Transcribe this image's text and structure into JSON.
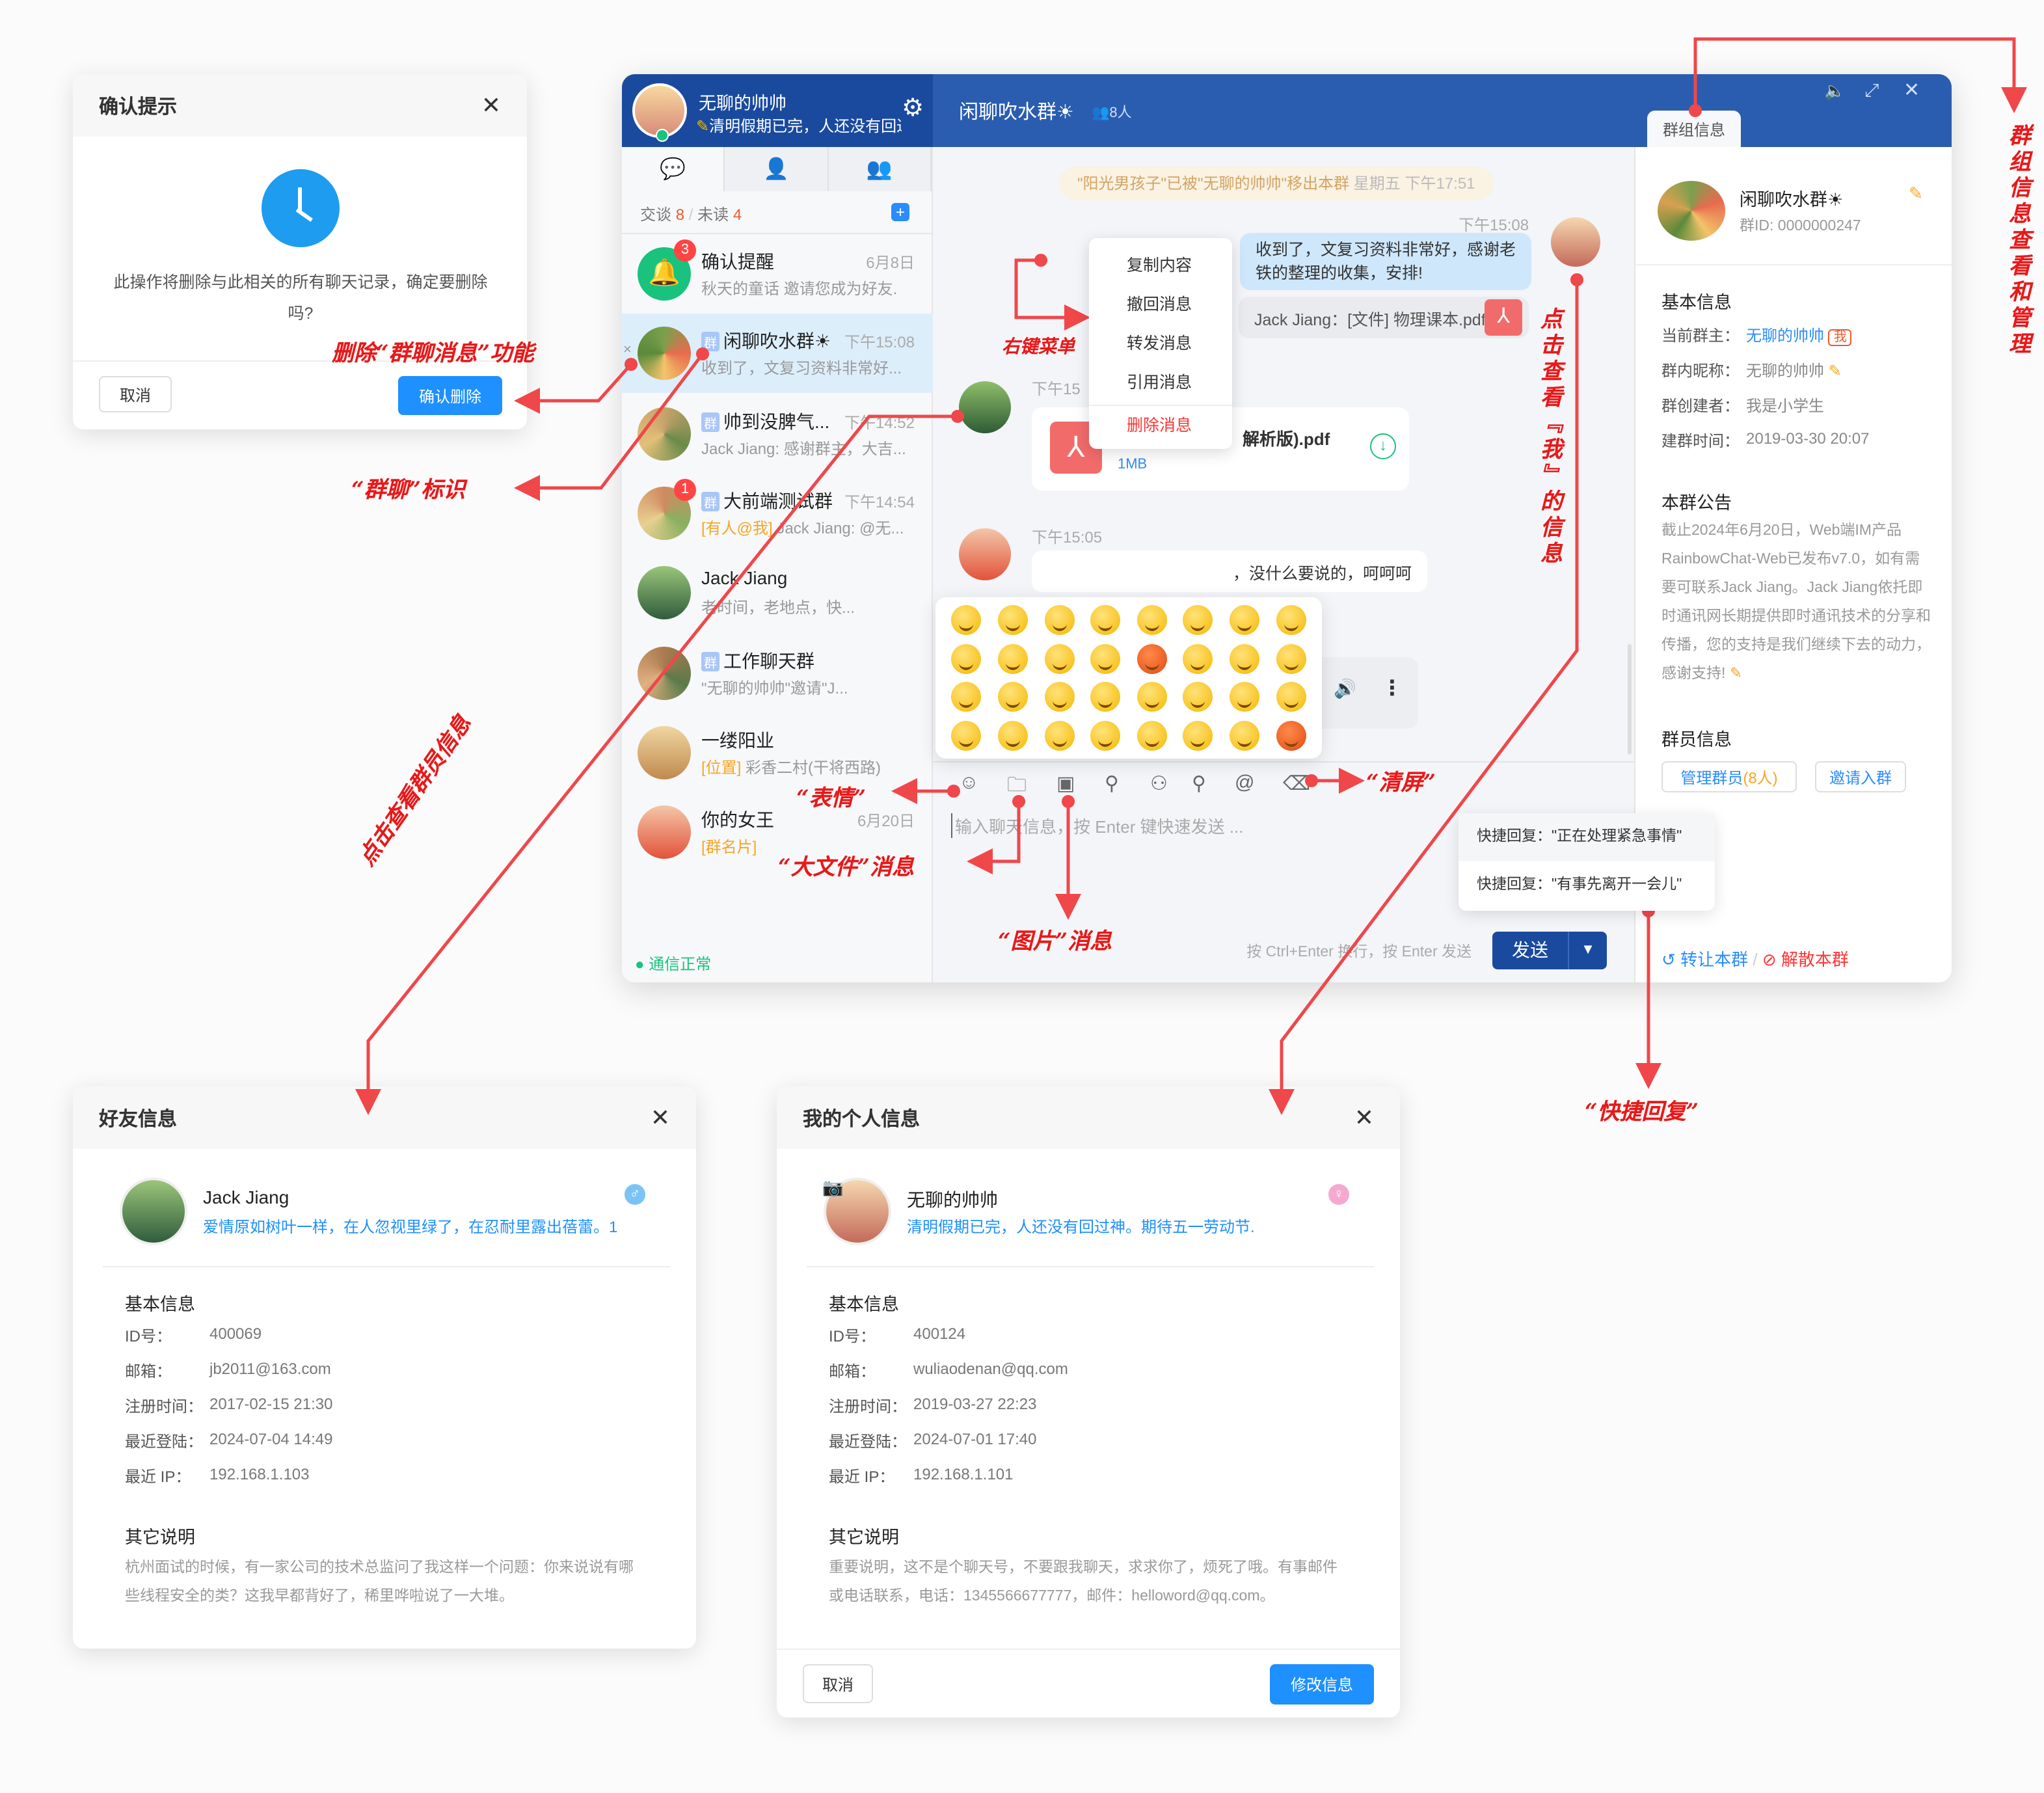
{
  "confirm_dialog": {
    "title": "确认提示",
    "icon": "clock-icon",
    "message": "此操作将删除与此相关的所有聊天记录，确定要删除吗?",
    "cancel": "取消",
    "confirm": "确认删除"
  },
  "window": {
    "me": {
      "name": "无聊的帅帅",
      "signature": "清明假期已完，人还没有回过神",
      "online": true
    },
    "tabs": [
      {
        "icon": "chat-bubble-icon",
        "active": true
      },
      {
        "icon": "contacts-icon"
      },
      {
        "icon": "group-icon"
      }
    ],
    "summary": {
      "talk_label": "交谈",
      "talk_count": "8",
      "sep": "/",
      "unread_label": "未读",
      "unread_count": "4"
    },
    "conversations": [
      {
        "name": "确认提醒",
        "time": "6月8日",
        "preview": "秋天的童话 邀请您成为好友.",
        "badge": "3",
        "group": false,
        "avatar": "bell"
      },
      {
        "name": "闲聊吹水群☀",
        "time": "下午15:08",
        "preview": "收到了，文复习资料非常好...",
        "group": true,
        "selected": true
      },
      {
        "name": "帅到没脾气...",
        "time": "下午14:52",
        "preview": "Jack Jiang: 感谢群主，大吉...",
        "group": true
      },
      {
        "name": "大前端测试群",
        "time": "下午14:54",
        "preview_tag": "[有人@我]",
        "preview": " Jack Jiang: @无...",
        "badge": "1",
        "group": true
      },
      {
        "name": "Jack Jiang",
        "time": "",
        "preview": "老时间，老地点，快...",
        "group": false
      },
      {
        "name": "工作聊天群",
        "time": "",
        "preview": "\"无聊的帅帅\"邀请\"J...",
        "group": true
      },
      {
        "name": "一缕阳业",
        "time": "",
        "preview_tag": "[位置]",
        "preview": " 彩香二村(干将西路)",
        "group": false
      },
      {
        "name": "你的女王",
        "time": "6月20日",
        "preview_tag": "[群名片]",
        "preview": "",
        "group": false
      }
    ],
    "group_tag": "群",
    "status": "通信正常",
    "chat": {
      "title": "闲聊吹水群☀",
      "member_count": "8人",
      "system_notice": "\"阳光男孩子\"已被\"无聊的帅帅\"移出本群",
      "system_time": "星期五 下午17:51",
      "messages": [
        {
          "time": "下午15:08",
          "text": "收到了，文复习资料非常好，感谢老铁的整理的收集，安排!",
          "mine": true
        },
        {
          "quote": "Jack Jiang：[文件] 物理课本.pdf"
        },
        {
          "time": "下午15",
          "file_name": "解析版).pdf",
          "file_size": "1MB"
        },
        {
          "time": "下午15:05",
          "text": "，没什么要说的，呵呵呵"
        },
        {
          "type": "voice"
        }
      ],
      "context_menu": [
        "复制内容",
        "撤回消息",
        "转发消息",
        "引用消息",
        "删除消息"
      ],
      "emojis": [
        "slightly-smiling",
        "upside-down",
        "frowning",
        "joy",
        "flushed",
        "sunglasses",
        "sob",
        "blush",
        "zipper-mouth",
        "sleeping",
        "disappointed-relieved",
        "sweat-smile",
        "angry",
        "stuck-out-tongue-winking",
        "grin",
        "scream",
        "slightly-frowning",
        "nerd",
        "cold-sweat",
        "tired",
        "vomiting",
        "laughing",
        "grinning",
        "smirk",
        "yum",
        "dizzy",
        "fearful",
        "sweat",
        "squinting-tongue",
        "expressionless",
        "cowboy",
        "cursing"
      ],
      "toolbar": [
        "emoji-icon",
        "folder-icon",
        "image-icon",
        "contact-card-icon",
        "group-card-icon",
        "location-icon",
        "at-icon",
        "eraser-icon"
      ],
      "input_placeholder": "输入聊天信息，按 Enter 键快速发送 ...",
      "hint": "按 Ctrl+Enter 换行，按 Enter 发送",
      "send": "发送",
      "quick_replies": [
        "快捷回复：\"正在处理紧急事情\"",
        "快捷回复：\"有事先离开一会儿\""
      ]
    },
    "group_panel": {
      "tab": "群组信息",
      "name": "闲聊吹水群☀",
      "group_id": "群ID: 0000000247",
      "basic_title": "基本信息",
      "owner_label": "当前群主：",
      "owner": "无聊的帅帅",
      "me_tag": "我",
      "nick_label": "群内昵称：",
      "nick": "无聊的帅帅",
      "creator_label": "群创建者：",
      "creator": "我是小学生",
      "created_label": "建群时间：",
      "created": "2019-03-30 20:07",
      "notice_title": "本群公告",
      "notice": "截止2024年6月20日，Web端IM产品RainbowChat-Web已发布v7.0，如有需要可联系Jack Jiang。Jack Jiang依托即时通讯网长期提供即时通讯技术的分享和传播，您的支持是我们继续下去的动力，感谢支持!",
      "members_title": "群员信息",
      "manage": "管理群员",
      "manage_count": "(8人)",
      "invite": "邀请入群",
      "transfer": "转让本群",
      "sep": "/",
      "dismiss": "解散本群"
    }
  },
  "friend_dialog": {
    "title": "好友信息",
    "name": "Jack Jiang",
    "signature": "爱情原如树叶一样，在人忽视里绿了，在忍耐里露出蓓蕾。1",
    "gender": "male",
    "basic_title": "基本信息",
    "rows": [
      {
        "k": "ID号：",
        "v": "400069"
      },
      {
        "k": "邮箱：",
        "v": "jb2011@163.com"
      },
      {
        "k": "注册时间：",
        "v": "2017-02-15 21:30"
      },
      {
        "k": "最近登陆：",
        "v": "2024-07-04 14:49"
      },
      {
        "k": "最近 IP：",
        "v": "192.168.1.103"
      }
    ],
    "other_title": "其它说明",
    "other": "杭州面试的时候，有一家公司的技术总监问了我这样一个问题：你来说说有哪些线程安全的类？这我早都背好了，稀里哗啦说了一大堆。"
  },
  "my_dialog": {
    "title": "我的个人信息",
    "name": "无聊的帅帅",
    "signature": "清明假期已完，人还没有回过神。期待五一劳动节.",
    "gender": "female",
    "basic_title": "基本信息",
    "rows": [
      {
        "k": "ID号：",
        "v": "400124"
      },
      {
        "k": "邮箱：",
        "v": "wuliaodenan@qq.com"
      },
      {
        "k": "注册时间：",
        "v": "2019-03-27 22:23"
      },
      {
        "k": "最近登陆：",
        "v": "2024-07-01 17:40"
      },
      {
        "k": "最近 IP：",
        "v": "192.168.1.101"
      }
    ],
    "other_title": "其它说明",
    "other": "重要说明，这不是个聊天号，不要跟我聊天，求求你了，烦死了哦。有事邮件或电话联系，电话：1345566677777，邮件：helloword@qq.com。",
    "cancel": "取消",
    "edit": "修改信息"
  },
  "annotations": {
    "delete": "删除“群聊消息”功能",
    "group_tag": "“群聊”标识",
    "context_menu": "右键菜单",
    "view_me": "点击查看『我』的信息",
    "group_info": "群组信息查看和管理",
    "emoji": "“表情”",
    "big_file": "“大文件”消息",
    "image": "“图片”消息",
    "clear": "“清屏”",
    "view_member": "点击查看群员信息",
    "quick_reply": "“快捷回复”"
  },
  "colors": {
    "header_dark": "#1a4a9e",
    "header": "#2a5db0",
    "accent": "#1e90ff",
    "annotation": "#e8191a",
    "online": "#19c37d"
  }
}
